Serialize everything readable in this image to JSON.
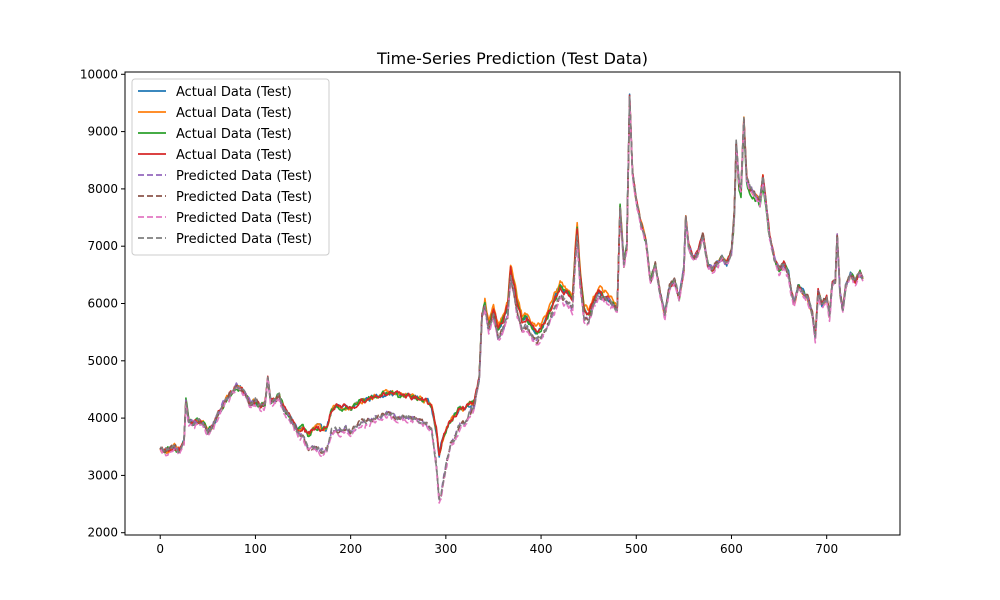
{
  "chart_data": {
    "type": "line",
    "title": "Time-Series Prediction (Test Data)",
    "xlabel": "",
    "ylabel": "",
    "xlim": [
      -37,
      777
    ],
    "ylim": [
      1960,
      10040
    ],
    "xticks": [
      0,
      100,
      200,
      300,
      400,
      500,
      600,
      700
    ],
    "yticks": [
      2000,
      3000,
      4000,
      5000,
      6000,
      7000,
      8000,
      9000,
      10000
    ],
    "grid": false,
    "legend_position": "top-left",
    "base_points": [
      [
        0,
        3450
      ],
      [
        5,
        3420
      ],
      [
        10,
        3450
      ],
      [
        15,
        3500
      ],
      [
        20,
        3420
      ],
      [
        25,
        3600
      ],
      [
        27,
        4300
      ],
      [
        30,
        3950
      ],
      [
        35,
        3900
      ],
      [
        40,
        3950
      ],
      [
        45,
        3900
      ],
      [
        50,
        3750
      ],
      [
        55,
        3850
      ],
      [
        60,
        4050
      ],
      [
        65,
        4200
      ],
      [
        70,
        4350
      ],
      [
        75,
        4450
      ],
      [
        80,
        4550
      ],
      [
        85,
        4500
      ],
      [
        90,
        4400
      ],
      [
        95,
        4250
      ],
      [
        100,
        4300
      ],
      [
        105,
        4200
      ],
      [
        110,
        4250
      ],
      [
        113,
        4700
      ],
      [
        116,
        4300
      ],
      [
        120,
        4300
      ],
      [
        125,
        4400
      ],
      [
        130,
        4150
      ],
      [
        135,
        4050
      ],
      [
        140,
        3900
      ],
      [
        145,
        3800
      ],
      [
        150,
        3850
      ],
      [
        155,
        3700
      ],
      [
        160,
        3800
      ],
      [
        165,
        3850
      ],
      [
        170,
        3800
      ],
      [
        175,
        3850
      ],
      [
        180,
        4150
      ],
      [
        185,
        4200
      ],
      [
        190,
        4150
      ],
      [
        195,
        4200
      ],
      [
        200,
        4150
      ],
      [
        210,
        4300
      ],
      [
        220,
        4350
      ],
      [
        230,
        4400
      ],
      [
        240,
        4450
      ],
      [
        250,
        4400
      ],
      [
        260,
        4400
      ],
      [
        270,
        4350
      ],
      [
        280,
        4300
      ],
      [
        285,
        4200
      ],
      [
        290,
        3800
      ],
      [
        293,
        3350
      ],
      [
        296,
        3600
      ],
      [
        300,
        3800
      ],
      [
        305,
        3950
      ],
      [
        310,
        4050
      ],
      [
        315,
        4200
      ],
      [
        320,
        4150
      ],
      [
        325,
        4250
      ],
      [
        330,
        4300
      ],
      [
        335,
        4700
      ],
      [
        338,
        5800
      ],
      [
        341,
        6000
      ],
      [
        345,
        5600
      ],
      [
        350,
        5900
      ],
      [
        355,
        5550
      ],
      [
        360,
        5700
      ],
      [
        365,
        5950
      ],
      [
        368,
        6600
      ],
      [
        372,
        6300
      ],
      [
        375,
        6000
      ],
      [
        380,
        5700
      ],
      [
        385,
        5750
      ],
      [
        390,
        5600
      ],
      [
        395,
        5500
      ],
      [
        400,
        5550
      ],
      [
        405,
        5700
      ],
      [
        410,
        5900
      ],
      [
        415,
        6100
      ],
      [
        420,
        6300
      ],
      [
        425,
        6200
      ],
      [
        430,
        6150
      ],
      [
        433,
        6050
      ],
      [
        436,
        6900
      ],
      [
        438,
        7300
      ],
      [
        441,
        6500
      ],
      [
        445,
        5900
      ],
      [
        450,
        5800
      ],
      [
        455,
        6050
      ],
      [
        460,
        6200
      ],
      [
        465,
        6150
      ],
      [
        470,
        6100
      ],
      [
        475,
        6000
      ],
      [
        480,
        5900
      ],
      [
        483,
        7700
      ],
      [
        487,
        6700
      ],
      [
        490,
        7000
      ],
      [
        493,
        9600
      ],
      [
        496,
        8300
      ],
      [
        500,
        7800
      ],
      [
        505,
        7400
      ],
      [
        510,
        7100
      ],
      [
        515,
        6400
      ],
      [
        520,
        6700
      ],
      [
        525,
        6200
      ],
      [
        530,
        5800
      ],
      [
        535,
        6300
      ],
      [
        540,
        6400
      ],
      [
        545,
        6100
      ],
      [
        550,
        6600
      ],
      [
        552,
        7500
      ],
      [
        555,
        7000
      ],
      [
        560,
        6800
      ],
      [
        565,
        6900
      ],
      [
        570,
        7200
      ],
      [
        575,
        6700
      ],
      [
        580,
        6600
      ],
      [
        585,
        6700
      ],
      [
        590,
        6800
      ],
      [
        595,
        6700
      ],
      [
        600,
        6900
      ],
      [
        603,
        7600
      ],
      [
        605,
        8800
      ],
      [
        608,
        8100
      ],
      [
        610,
        8000
      ],
      [
        613,
        9200
      ],
      [
        616,
        8200
      ],
      [
        620,
        8000
      ],
      [
        625,
        7900
      ],
      [
        630,
        7800
      ],
      [
        633,
        8200
      ],
      [
        636,
        7800
      ],
      [
        640,
        7200
      ],
      [
        645,
        6800
      ],
      [
        650,
        6600
      ],
      [
        655,
        6700
      ],
      [
        660,
        6500
      ],
      [
        663,
        6200
      ],
      [
        666,
        6000
      ],
      [
        670,
        6300
      ],
      [
        675,
        6200
      ],
      [
        680,
        6100
      ],
      [
        685,
        5800
      ],
      [
        688,
        5400
      ],
      [
        691,
        6200
      ],
      [
        695,
        6000
      ],
      [
        700,
        6100
      ],
      [
        703,
        5800
      ],
      [
        706,
        6400
      ],
      [
        709,
        6400
      ],
      [
        711,
        7200
      ],
      [
        714,
        6200
      ],
      [
        717,
        5900
      ],
      [
        720,
        6300
      ],
      [
        725,
        6500
      ],
      [
        730,
        6400
      ],
      [
        735,
        6550
      ],
      [
        738,
        6450
      ]
    ],
    "series": [
      {
        "name": "Actual Data (Test)",
        "color": "#1f77b4",
        "style": "solid"
      },
      {
        "name": "Actual Data (Test)",
        "color": "#ff7f0e",
        "style": "solid"
      },
      {
        "name": "Actual Data (Test)",
        "color": "#2ca02c",
        "style": "solid"
      },
      {
        "name": "Actual Data (Test)",
        "color": "#d62728",
        "style": "solid"
      },
      {
        "name": "Predicted Data (Test)",
        "color": "#9467bd",
        "style": "dashed"
      },
      {
        "name": "Predicted Data (Test)",
        "color": "#8c564b",
        "style": "dashed"
      },
      {
        "name": "Predicted Data (Test)",
        "color": "#e377c2",
        "style": "dashed"
      },
      {
        "name": "Predicted Data (Test)",
        "color": "#7f7f7f",
        "style": "dashed"
      }
    ]
  }
}
